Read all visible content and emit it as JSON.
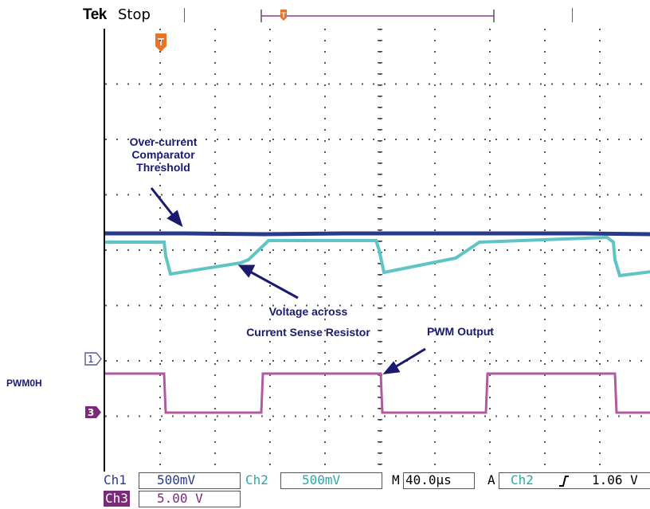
{
  "header": {
    "brand": "Tek",
    "run_state": "Stop",
    "trigger_marker": "T"
  },
  "channel_markers": {
    "ch1": "1",
    "ch3": "3"
  },
  "side_label": "PWM0H",
  "annotations": {
    "threshold": [
      "Over-current",
      "Comparator",
      "Threshold"
    ],
    "voltage": [
      "Voltage across",
      "Current Sense Resistor"
    ],
    "pwm": "PWM Output"
  },
  "footer": {
    "ch1_label": "Ch1",
    "ch1_scale": "500mV",
    "ch2_label": "Ch2",
    "ch2_scale": "500mV",
    "timebase_prefix": "M",
    "timebase": "40.0µs",
    "trigger_mode": "A",
    "trigger_source": "Ch2",
    "trigger_slope_icon": "rising-edge-icon",
    "trigger_level": "1.06 V",
    "ch3_label": "Ch3",
    "ch3_scale": "5.00 V"
  },
  "colors": {
    "ch1": "#283a8c",
    "ch2": "#5ec4c4",
    "ch3": "#b25a9e",
    "ch3_badge": "#7a2a78",
    "trigger": "#e8742a",
    "annotation": "#1a1a6e"
  }
}
